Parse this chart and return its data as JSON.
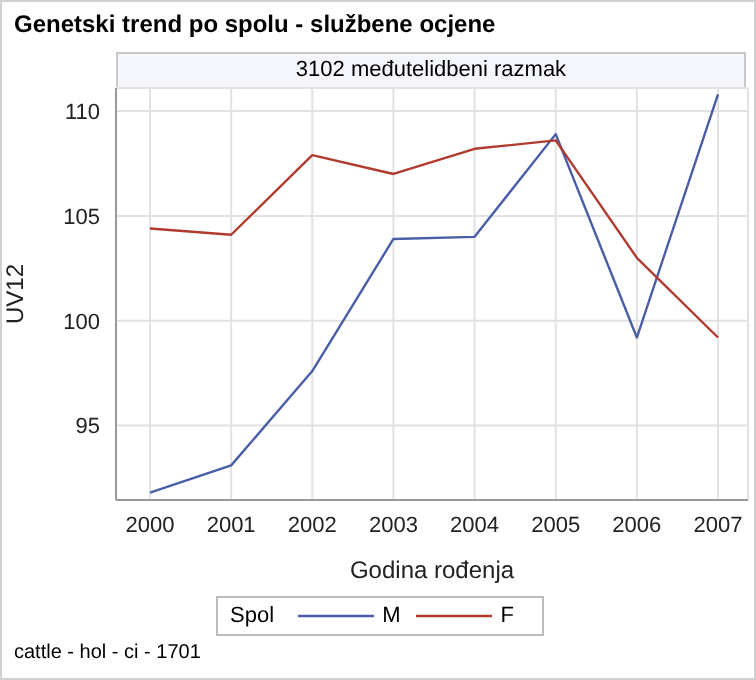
{
  "chart_data": {
    "type": "line",
    "title": "Genetski trend po spolu - službene ocjene",
    "subtitle": "3102 međutelidbeni razmak",
    "xlabel": "Godina rođenja",
    "ylabel": "UV12",
    "legend_title": "Spol",
    "annotations": [
      "cattle - hol - ci - 1701"
    ],
    "categories": [
      "2000",
      "2001",
      "2002",
      "2003",
      "2004",
      "2005",
      "2006",
      "2007"
    ],
    "series": [
      {
        "name": "M",
        "color": "#4a5ea8",
        "values": [
          91.8,
          93.1,
          97.6,
          103.9,
          104.0,
          108.9,
          99.2,
          110.8
        ]
      },
      {
        "name": "F",
        "color": "#b03a2e",
        "values": [
          104.4,
          104.1,
          107.9,
          107.0,
          108.2,
          108.6,
          103.0,
          99.2
        ]
      }
    ],
    "ylim": [
      91.45,
      111.1
    ],
    "yticks": [
      95,
      100,
      105,
      110
    ],
    "grid": true,
    "legend": "bottom",
    "marker": "none",
    "line_style": "solid"
  }
}
